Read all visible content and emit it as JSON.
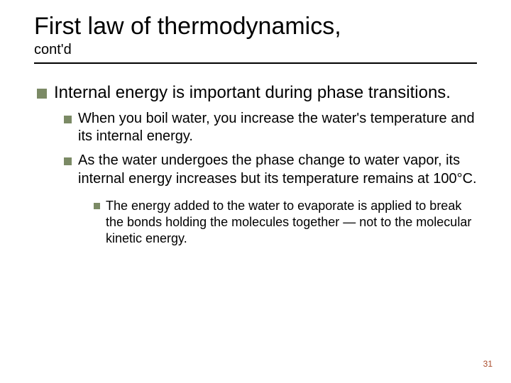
{
  "title": "First law of thermodynamics,",
  "subtitle": "cont'd",
  "hr_color": "#000000",
  "bullet_color": "#7b8a65",
  "page_number_color": "#a94b2a",
  "content": {
    "level1": "Internal energy is important during phase transitions.",
    "level2a": "When you boil water, you increase the water's temperature and its internal energy.",
    "level2b": "As the water undergoes the phase change to water vapor, its internal energy increases but its temperature remains at 100°C.",
    "level3": "The energy added to the water to evaporate is applied to break the bonds holding the molecules together — not to the molecular kinetic energy."
  },
  "page_number": "31"
}
